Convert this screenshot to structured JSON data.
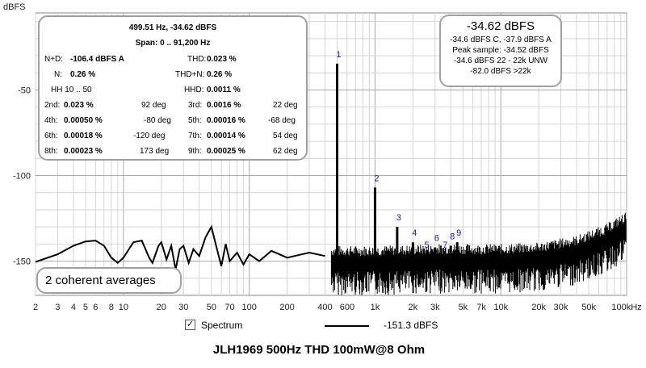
{
  "chart_data": {
    "type": "line",
    "title": "JLH1969 500Hz THD 100mW@8 Ohm",
    "ylabel": "dBFS",
    "xlabel": "",
    "x_scale": "log",
    "xlim": [
      2,
      100000
    ],
    "ylim": [
      -170,
      -5
    ],
    "grid": true,
    "x_ticks": [
      {
        "v": 2,
        "label": "2"
      },
      {
        "v": 3,
        "label": "3"
      },
      {
        "v": 4,
        "label": "4"
      },
      {
        "v": 5,
        "label": "5"
      },
      {
        "v": 6,
        "label": "6"
      },
      {
        "v": 8,
        "label": "8"
      },
      {
        "v": 10,
        "label": "10"
      },
      {
        "v": 20,
        "label": "20"
      },
      {
        "v": 30,
        "label": "30"
      },
      {
        "v": 50,
        "label": "50"
      },
      {
        "v": 70,
        "label": "70"
      },
      {
        "v": 100,
        "label": "100"
      },
      {
        "v": 200,
        "label": "200"
      },
      {
        "v": 400,
        "label": "400"
      },
      {
        "v": 600,
        "label": "600"
      },
      {
        "v": 1000,
        "label": "1k"
      },
      {
        "v": 2000,
        "label": "2k"
      },
      {
        "v": 3000,
        "label": "3k"
      },
      {
        "v": 5000,
        "label": "5k"
      },
      {
        "v": 7000,
        "label": "7k"
      },
      {
        "v": 10000,
        "label": "10k"
      },
      {
        "v": 20000,
        "label": "20k"
      },
      {
        "v": 30000,
        "label": "30k"
      },
      {
        "v": 50000,
        "label": "50k"
      },
      {
        "v": 100000,
        "label": "100kHz"
      }
    ],
    "y_ticks": [
      {
        "v": -50,
        "label": "-50"
      },
      {
        "v": -100,
        "label": "-100"
      },
      {
        "v": -150,
        "label": "-150"
      }
    ],
    "series": [
      {
        "name": "Spectrum",
        "color": "#000000",
        "envelope_points": [
          [
            2,
            -150.5
          ],
          [
            3,
            -146
          ],
          [
            4,
            -141
          ],
          [
            5,
            -138.5
          ],
          [
            6,
            -138
          ],
          [
            7,
            -141
          ],
          [
            8,
            -148
          ],
          [
            9,
            -151
          ],
          [
            10,
            -148
          ],
          [
            12,
            -139
          ],
          [
            14,
            -138
          ],
          [
            16,
            -148
          ],
          [
            17,
            -151
          ],
          [
            19,
            -141
          ],
          [
            20,
            -139
          ],
          [
            22,
            -149
          ],
          [
            24,
            -141
          ],
          [
            26,
            -155
          ],
          [
            28,
            -143
          ],
          [
            30,
            -141
          ],
          [
            33,
            -151
          ],
          [
            36,
            -143
          ],
          [
            40,
            -147
          ],
          [
            45,
            -136
          ],
          [
            50,
            -130
          ],
          [
            55,
            -142
          ],
          [
            60,
            -153
          ],
          [
            65,
            -140
          ],
          [
            70,
            -150
          ],
          [
            80,
            -145
          ],
          [
            90,
            -152
          ],
          [
            100,
            -146
          ],
          [
            120,
            -150
          ],
          [
            150,
            -144
          ],
          [
            200,
            -148
          ],
          [
            300,
            -145
          ],
          [
            400,
            -147
          ]
        ],
        "noise_floor_points": [
          [
            450,
            -150
          ],
          [
            1000,
            -150
          ],
          [
            3000,
            -149
          ],
          [
            10000,
            -149
          ],
          [
            20000,
            -148
          ],
          [
            40000,
            -144
          ],
          [
            70000,
            -137
          ],
          [
            100000,
            -130
          ]
        ],
        "peaks": [
          {
            "freq": 499.51,
            "level": -34.62,
            "label": "1"
          },
          {
            "freq": 1000,
            "level": -107,
            "label": "2"
          },
          {
            "freq": 1500,
            "level": -130,
            "label": "3"
          },
          {
            "freq": 2000,
            "level": -139,
            "label": "4"
          },
          {
            "freq": 2500,
            "level": -146,
            "label": "5"
          },
          {
            "freq": 3000,
            "level": -142,
            "label": "6"
          },
          {
            "freq": 3500,
            "level": -146,
            "label": "7"
          },
          {
            "freq": 4000,
            "level": -141,
            "label": "8"
          },
          {
            "freq": 4500,
            "level": -139,
            "label": "9"
          }
        ]
      }
    ],
    "legend": {
      "label": "Spectrum",
      "checked": true,
      "value": "-151.3 dBFS"
    }
  },
  "stats_panel": {
    "header1": "499.51 Hz, -34.62 dBFS",
    "header2": "Span: 0 .. 91,200 Hz",
    "nd_label": "N+D:",
    "nd_value": "-106.4 dBFS A",
    "thd_label": "THD:",
    "thd_value": "0.023 %",
    "n_label": "N:",
    "n_value": "0.26 %",
    "thdn_label": "THD+N:",
    "thdn_value": "0.26 %",
    "hh_label": "HH 10 .. 50",
    "hhd_label": "HHD:",
    "hhd_value": "0.0011 %",
    "harmonics": [
      {
        "l1": "2nd:",
        "v1": "0.023 %",
        "d1": "92 deg",
        "l2": "3rd:",
        "v2": "0.0016 %",
        "d2": "22 deg"
      },
      {
        "l1": "4th:",
        "v1": "0.00050 %",
        "d1": "-80 deg",
        "l2": "5th:",
        "v2": "0.00016 %",
        "d2": "-68 deg"
      },
      {
        "l1": "6th:",
        "v1": "0.00018 %",
        "d1": "-120 deg",
        "l2": "7th:",
        "v2": "0.00014 %",
        "d2": "54 deg"
      },
      {
        "l1": "8th:",
        "v1": "0.00023 %",
        "d1": "173 deg",
        "l2": "9th:",
        "v2": "0.00025 %",
        "d2": "62 deg"
      }
    ]
  },
  "level_panel": {
    "level": "-34.62 dBFS",
    "line1": "-34.6 dBFS C, -37.9 dBFS A",
    "line2": "Peak sample: -34.52 dBFS",
    "line3": "-34.6 dBFS 22 - 22k UNW",
    "line4": "-82.0 dBFS >22k"
  },
  "averages_label": "2 coherent averages"
}
